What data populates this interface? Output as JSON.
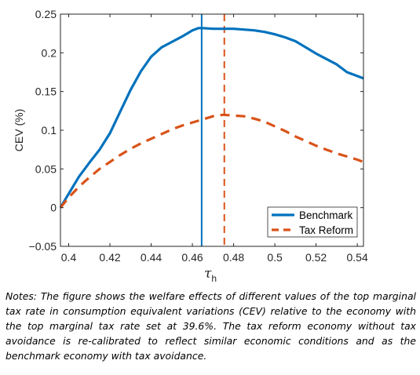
{
  "chart_data": {
    "type": "line",
    "xlabel": "τ",
    "xlabel_subscript": "h",
    "ylabel": "CEV (%)",
    "xlim": [
      0.396,
      0.543
    ],
    "ylim": [
      -0.05,
      0.25
    ],
    "xticks": [
      0.4,
      0.42,
      0.44,
      0.46,
      0.48,
      0.5,
      0.52,
      0.54
    ],
    "xtick_labels": [
      "0.4",
      "0.42",
      "0.44",
      "0.46",
      "0.48",
      "0.5",
      "0.52",
      "0.54"
    ],
    "yticks": [
      -0.05,
      0,
      0.05,
      0.1,
      0.15,
      0.2,
      0.25
    ],
    "ytick_labels": [
      "−0.05",
      "0",
      "0.05",
      "0.1",
      "0.15",
      "0.2",
      "0.25"
    ],
    "legend_position": "bottom-right",
    "series": [
      {
        "name": "Benchmark",
        "color": "#0072BD",
        "style": "solid",
        "x": [
          0.396,
          0.4,
          0.405,
          0.41,
          0.415,
          0.42,
          0.425,
          0.43,
          0.435,
          0.44,
          0.445,
          0.45,
          0.455,
          0.46,
          0.463,
          0.465,
          0.47,
          0.475,
          0.48,
          0.485,
          0.49,
          0.495,
          0.5,
          0.505,
          0.51,
          0.515,
          0.52,
          0.525,
          0.53,
          0.535,
          0.54,
          0.543
        ],
        "values": [
          0.0,
          0.018,
          0.04,
          0.058,
          0.075,
          0.096,
          0.124,
          0.152,
          0.176,
          0.195,
          0.207,
          0.214,
          0.221,
          0.229,
          0.232,
          0.232,
          0.231,
          0.231,
          0.231,
          0.23,
          0.229,
          0.227,
          0.224,
          0.22,
          0.215,
          0.207,
          0.199,
          0.192,
          0.185,
          0.175,
          0.17,
          0.167
        ]
      },
      {
        "name": "Tax Reform",
        "color": "#D95319",
        "style": "dashed",
        "x": [
          0.396,
          0.4,
          0.405,
          0.41,
          0.415,
          0.42,
          0.425,
          0.43,
          0.435,
          0.44,
          0.445,
          0.45,
          0.455,
          0.46,
          0.465,
          0.47,
          0.475,
          0.48,
          0.485,
          0.49,
          0.495,
          0.5,
          0.505,
          0.51,
          0.515,
          0.52,
          0.525,
          0.53,
          0.535,
          0.54,
          0.543
        ],
        "values": [
          0.0,
          0.013,
          0.027,
          0.039,
          0.05,
          0.059,
          0.068,
          0.076,
          0.083,
          0.089,
          0.095,
          0.101,
          0.106,
          0.11,
          0.114,
          0.118,
          0.12,
          0.119,
          0.118,
          0.115,
          0.111,
          0.105,
          0.099,
          0.092,
          0.086,
          0.08,
          0.075,
          0.07,
          0.066,
          0.062,
          0.059
        ]
      }
    ],
    "vlines": [
      {
        "x": 0.4645,
        "color": "#0072BD",
        "style": "solid"
      },
      {
        "x": 0.4755,
        "color": "#D95319",
        "style": "dashed"
      }
    ]
  },
  "notes": "Notes: The figure shows the welfare effects of different values of the top marginal tax rate in consumption equivalent variations (CEV) relative to the economy with the top marginal tax rate set at 39.6%. The tax reform economy without tax avoidance is re-calibrated to reflect similar economic conditions and as the benchmark economy with tax avoidance."
}
